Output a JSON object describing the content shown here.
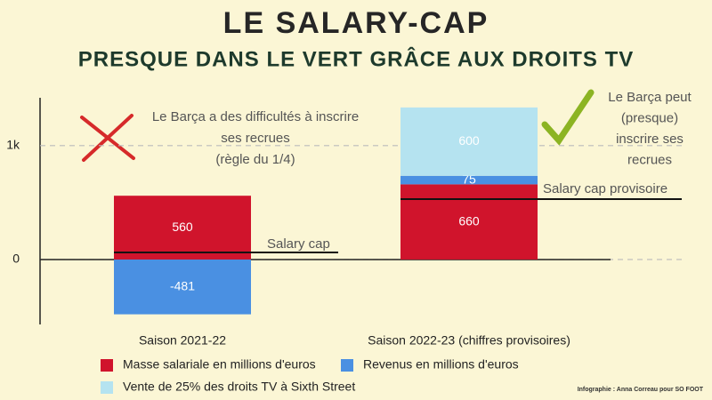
{
  "chart_data": {
    "type": "stacked_bar",
    "title": "LE SALARY-CAP",
    "subtitle": "PRESQUE DANS LE VERT GRÂCE AUX DROITS TV",
    "categories": [
      "Saison 2021-22",
      "Saison 2022-23 (chiffres provisoires)"
    ],
    "series": [
      {
        "name": "Masse salariale en millions d'euros",
        "color": "#d0142c",
        "values": [
          560,
          660
        ]
      },
      {
        "name": "Revenus en millions d'euros",
        "color": "#4a90e2",
        "values": [
          -481,
          75
        ]
      },
      {
        "name": "Vente de 25% des droits TV à Sixth Street",
        "color": "#b5e3f0",
        "values": [
          null,
          600
        ]
      }
    ],
    "ylim": [
      -570,
      1420
    ],
    "yticks": [
      0,
      {
        "value": 1000,
        "label": "1k"
      }
    ],
    "grid": true,
    "reference_lines": [
      {
        "label": "Salary cap",
        "value": 62
      },
      {
        "label": "Salary cap provisoire",
        "value": 530
      }
    ],
    "annotations": [
      {
        "lines": [
          "Le Barça a des difficultés à inscrire",
          "ses recrues",
          "(règle du 1/4)"
        ]
      },
      {
        "lines": [
          "Le Barça peut",
          "(presque)",
          "inscrire ses",
          "recrues"
        ]
      }
    ],
    "credit": "Infographie : Anna Correau pour SO FOOT"
  }
}
